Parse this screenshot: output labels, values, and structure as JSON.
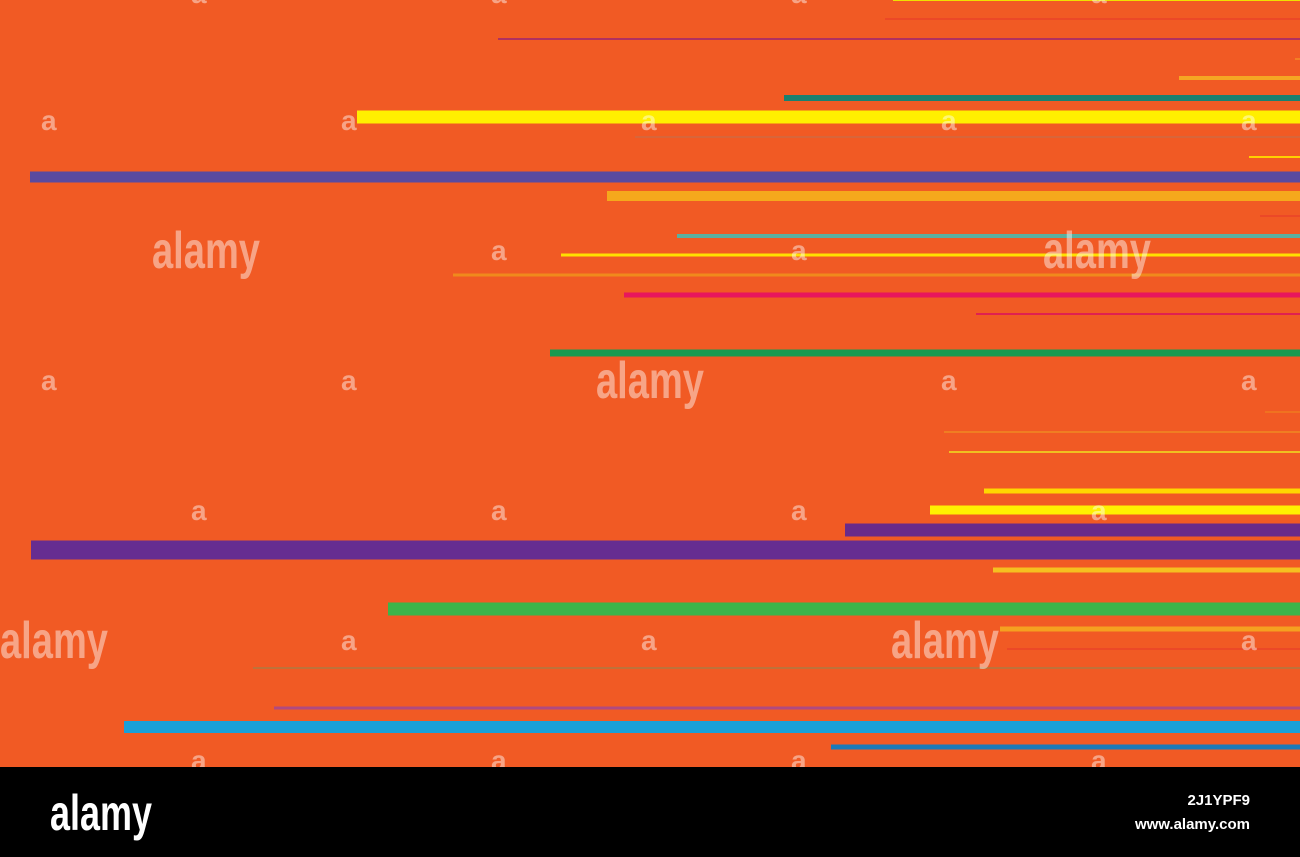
{
  "watermark": {
    "logo": "alamy",
    "letter": "a"
  },
  "footer": {
    "logo": "alamy",
    "image_id": "2J1YPF9",
    "url": "www.alamy.com"
  }
}
